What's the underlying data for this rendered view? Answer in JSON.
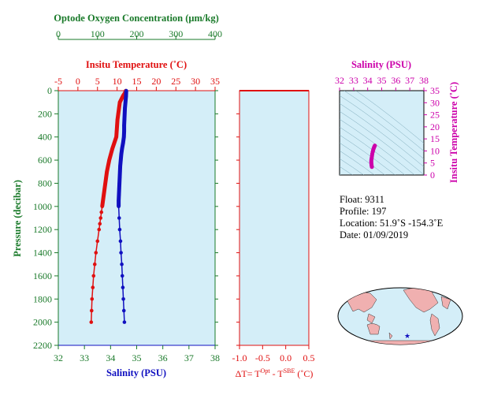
{
  "chart_data": [
    {
      "type": "line",
      "title": "",
      "oxygen_axis": {
        "label": "Optode Oxygen Concentration (μm/kg)",
        "range": [
          0,
          400
        ],
        "ticks": [
          "0",
          "100",
          "200",
          "300",
          "400"
        ]
      },
      "temp_axis": {
        "label": "Insitu Temperature (˚C)",
        "range": [
          -5,
          35
        ],
        "ticks": [
          "-5",
          "0",
          "5",
          "10",
          "15",
          "20",
          "25",
          "30",
          "35"
        ]
      },
      "salinity_axis": {
        "label": "Salinity (PSU)",
        "range": [
          32,
          38
        ],
        "ticks": [
          "32",
          "33",
          "34",
          "35",
          "36",
          "37",
          "38"
        ]
      },
      "pressure_axis": {
        "label": "Pressure (decibar)",
        "range": [
          0,
          2200
        ],
        "ticks": [
          "0",
          "200",
          "400",
          "600",
          "800",
          "1000",
          "1200",
          "1400",
          "1600",
          "1800",
          "2000",
          "2200"
        ]
      },
      "series": [
        {
          "color": "#e01010",
          "points": [
            [
              0,
              12.2
            ],
            [
              20,
              12.0
            ],
            [
              40,
              11.6
            ],
            [
              60,
              11.3
            ],
            [
              80,
              11.0
            ],
            [
              100,
              10.7
            ],
            [
              150,
              10.5
            ],
            [
              200,
              10.3
            ],
            [
              250,
              10.1
            ],
            [
              300,
              10.0
            ],
            [
              350,
              9.9
            ],
            [
              400,
              9.8
            ],
            [
              450,
              9.3
            ],
            [
              500,
              8.8
            ],
            [
              550,
              8.4
            ],
            [
              600,
              8.0
            ],
            [
              650,
              7.7
            ],
            [
              700,
              7.4
            ],
            [
              750,
              7.2
            ],
            [
              800,
              7.0
            ],
            [
              850,
              6.8
            ],
            [
              900,
              6.6
            ],
            [
              950,
              6.4
            ],
            [
              1000,
              6.2
            ],
            [
              1050,
              6.0
            ],
            [
              1100,
              5.8
            ],
            [
              1150,
              5.6
            ],
            [
              1200,
              5.4
            ],
            [
              1300,
              5.0
            ],
            [
              1400,
              4.6
            ],
            [
              1500,
              4.3
            ],
            [
              1600,
              4.0
            ],
            [
              1700,
              3.8
            ],
            [
              1800,
              3.6
            ],
            [
              1900,
              3.5
            ],
            [
              2000,
              3.4
            ]
          ]
        },
        {
          "color": "#1010c0",
          "points": [
            [
              0,
              34.6
            ],
            [
              50,
              34.59
            ],
            [
              100,
              34.57
            ],
            [
              150,
              34.55
            ],
            [
              200,
              34.54
            ],
            [
              250,
              34.53
            ],
            [
              300,
              34.52
            ],
            [
              350,
              34.52
            ],
            [
              400,
              34.51
            ],
            [
              450,
              34.48
            ],
            [
              500,
              34.44
            ],
            [
              550,
              34.41
            ],
            [
              600,
              34.39
            ],
            [
              650,
              34.37
            ],
            [
              700,
              34.36
            ],
            [
              750,
              34.35
            ],
            [
              800,
              34.34
            ],
            [
              850,
              34.33
            ],
            [
              900,
              34.32
            ],
            [
              950,
              34.31
            ],
            [
              1000,
              34.31
            ],
            [
              1100,
              34.33
            ],
            [
              1200,
              34.35
            ],
            [
              1300,
              34.38
            ],
            [
              1400,
              34.4
            ],
            [
              1500,
              34.43
            ],
            [
              1600,
              34.45
            ],
            [
              1700,
              34.47
            ],
            [
              1800,
              34.49
            ],
            [
              1900,
              34.51
            ],
            [
              2000,
              34.53
            ]
          ]
        }
      ]
    },
    {
      "type": "line",
      "xlabel": "ΔT= T",
      "xlabel_sup1": "Opt",
      "xlabel_mid": " - T",
      "xlabel_sup2": "SBE",
      "xlabel_end": " (˚C)",
      "xlim": [
        -1.0,
        0.5
      ],
      "ticks": [
        "-1.0",
        "-0.5",
        "0.0",
        "0.5"
      ],
      "series": [
        {
          "color": "#e01010",
          "points": []
        }
      ]
    },
    {
      "type": "scatter",
      "xlabel": "Salinity (PSU)",
      "ylabel": "Insitu Temperature (˚C)",
      "xlim": [
        32,
        38
      ],
      "ylim": [
        0,
        35
      ],
      "xticks": [
        "32",
        "33",
        "34",
        "35",
        "36",
        "37",
        "38"
      ],
      "yticks": [
        "0",
        "5",
        "10",
        "15",
        "20",
        "25",
        "30",
        "35"
      ],
      "points": [
        [
          34.3,
          3.4
        ],
        [
          34.28,
          4.0
        ],
        [
          34.27,
          4.6
        ],
        [
          34.26,
          5.2
        ],
        [
          34.26,
          5.8
        ],
        [
          34.27,
          6.5
        ],
        [
          34.29,
          7.2
        ],
        [
          34.31,
          8.0
        ],
        [
          34.33,
          8.8
        ],
        [
          34.36,
          9.6
        ],
        [
          34.39,
          10.3
        ],
        [
          34.42,
          10.9
        ],
        [
          34.45,
          11.4
        ],
        [
          34.48,
          11.8
        ],
        [
          34.51,
          12.2
        ]
      ]
    }
  ],
  "info": {
    "float": "Float:  9311",
    "profile": "Profile:  197",
    "location": "Location:  51.9˚S  -154.3˚E",
    "date": "Date:  01/09/2019"
  },
  "map": {
    "land_color": "#f0b0b0",
    "ocean_color": "#d4eef8",
    "marker": "★"
  }
}
